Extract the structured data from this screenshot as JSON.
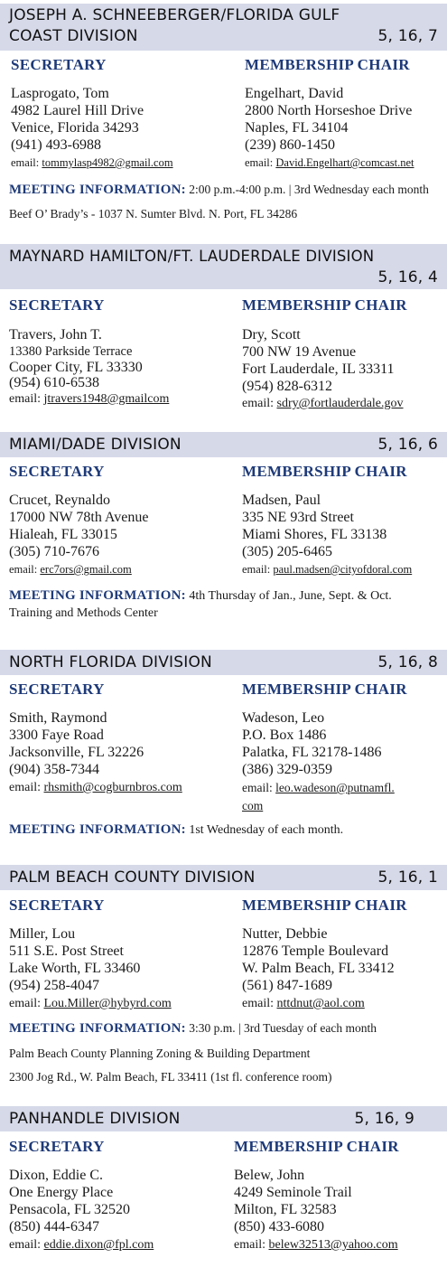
{
  "role_labels": {
    "secretary": "SECRETARY",
    "membership": "MEMBERSHIP CHAIR"
  },
  "meeting_label": "MEETING INFORMATION:",
  "email_label": "email:",
  "divisions": [
    {
      "title_line1": "JOSEPH A. SCHNEEBERGER/FLORIDA GULF",
      "title_line2": "COAST DIVISION",
      "codes": "5, 16, 7",
      "secretary": {
        "name": "Lasprogato, Tom",
        "address1": "4982 Laurel Hill Drive",
        "address2": "Venice, Florida 34293",
        "phone": "(941) 493-6988",
        "email": "tommylasp4982@gmail.com"
      },
      "membership": {
        "name": "Engelhart, David",
        "address1": "2800 North Horseshoe Drive",
        "address2": "Naples, FL 34104",
        "phone": "(239) 860-1450",
        "email": "David.Engelhart@comcast.net"
      },
      "meeting": "2:00 p.m.-4:00 p.m. | 3rd Wednesday each month",
      "location": "Beef  O’ Brady’s - 1037 N. Sumter Blvd. N. Port, FL 34286"
    },
    {
      "title": "MAYNARD HAMILTON/FT. LAUDERDALE DIVISION",
      "codes": "5, 16, 4",
      "secretary": {
        "name": "Travers, John T.",
        "address1": "13380 Parkside Terrace",
        "address2": "Cooper City, FL 33330",
        "phone": "(954) 610-6538",
        "email": "jtravers1948@gmailcom"
      },
      "membership": {
        "name": "Dry, Scott",
        "address1": "700 NW 19 Avenue",
        "address2": "Fort Lauderdale, IL 33311",
        "phone": "(954) 828-6312",
        "email": "sdry@fortlauderdale.gov"
      }
    },
    {
      "title": "MIAMI/DADE DIVISION",
      "codes": "5, 16, 6",
      "secretary": {
        "name": "Crucet, Reynaldo",
        "address1": "17000 NW 78th Avenue",
        "address2": "Hialeah, FL 33015",
        "phone": "(305) 710-7676",
        "email": "erc7ors@gmail.com"
      },
      "membership": {
        "name": "Madsen, Paul",
        "address1": "335 NE 93rd Street",
        "address2": "Miami Shores, FL 33138",
        "phone": "(305) 205-6465",
        "email": "paul.madsen@cityofdoral.com"
      },
      "meeting": "4th Thursday of Jan., June, Sept. & Oct.",
      "location": "Training and Methods Center"
    },
    {
      "title": "NORTH FLORIDA DIVISION",
      "codes": "5, 16, 8",
      "secretary": {
        "name": "Smith, Raymond",
        "address1": "3300 Faye Road",
        "address2": "Jacksonville, FL 32226",
        "phone": "(904) 358-7344",
        "email": "rhsmith@cogburnbros.com"
      },
      "membership": {
        "name": "Wadeson, Leo",
        "address1": "P.O. Box 1486",
        "address2": "Palatka, FL 32178-1486",
        "phone": "(386) 329-0359",
        "email_part1": "leo.wadeson@putnamfl.",
        "email_part2": "com"
      },
      "meeting": "1st Wednesday of each month."
    },
    {
      "title": "PALM BEACH COUNTY DIVISION",
      "codes": "5, 16, 1",
      "secretary": {
        "name": "Miller, Lou",
        "address1": "511 S.E. Post Street",
        "address2": "Lake Worth, FL 33460",
        "phone": "(954) 258-4047",
        "email": "Lou.Miller@hybyrd.com"
      },
      "membership": {
        "name": "Nutter, Debbie",
        "address1": "12876 Temple Boulevard",
        "address2": "W. Palm Beach, FL 33412",
        "phone": "(561) 847-1689",
        "email": "nttdnut@aol.com"
      },
      "meeting": "3:30 p.m. | 3rd Tuesday of each month",
      "location1": "Palm Beach County Planning Zoning & Building Department",
      "location2": "2300 Jog Rd., W. Palm Beach, FL 33411 (1st fl. conference room)"
    },
    {
      "title": "PANHANDLE DIVISION",
      "codes": "5, 16, 9",
      "secretary": {
        "name": "Dixon, Eddie C.",
        "address1": "One Energy Place",
        "address2": "Pensacola, FL  32520",
        "phone": "(850) 444-6347",
        "email": "eddie.dixon@fpl.com"
      },
      "membership": {
        "name": "Belew, John",
        "address1": "4249 Seminole Trail",
        "address2": "Milton, FL 32583",
        "phone": "(850) 433-6080",
        "email": "belew32513@yahoo.com"
      }
    }
  ]
}
